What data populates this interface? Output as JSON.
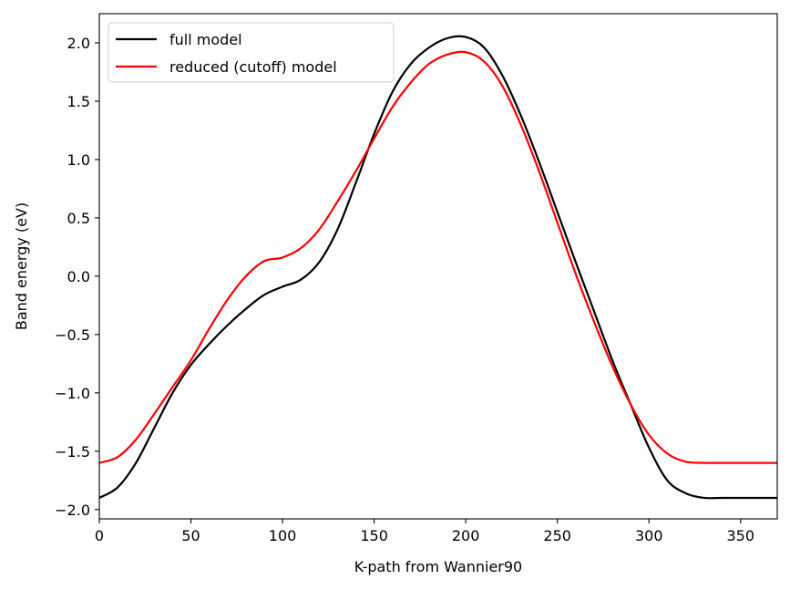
{
  "chart_data": {
    "type": "line",
    "xlabel": "K-path from Wannier90",
    "ylabel": "Band energy (eV)",
    "xlim": [
      0,
      370
    ],
    "ylim": [
      -2.08,
      2.25
    ],
    "xticks": [
      0,
      50,
      100,
      150,
      200,
      250,
      300,
      350
    ],
    "xtick_labels": [
      "0",
      "50",
      "100",
      "150",
      "200",
      "250",
      "300",
      "350"
    ],
    "yticks": [
      -2.0,
      -1.5,
      -1.0,
      -0.5,
      0.0,
      0.5,
      1.0,
      1.5,
      2.0
    ],
    "ytick_labels": [
      "−2.0",
      "−1.5",
      "−1.0",
      "−0.5",
      "0.0",
      "0.5",
      "1.0",
      "1.5",
      "2.0"
    ],
    "grid": false,
    "legend_position": "top-left",
    "series": [
      {
        "name": "full model",
        "color": "#000000",
        "x": [
          0,
          10,
          20,
          30,
          40,
          50,
          60,
          70,
          80,
          90,
          100,
          110,
          120,
          130,
          140,
          150,
          160,
          170,
          180,
          190,
          200,
          210,
          220,
          230,
          240,
          250,
          260,
          270,
          280,
          290,
          300,
          310,
          320,
          330,
          340,
          350,
          360,
          370
        ],
        "y": [
          -1.9,
          -1.81,
          -1.6,
          -1.3,
          -1.0,
          -0.76,
          -0.58,
          -0.42,
          -0.28,
          -0.16,
          -0.09,
          -0.03,
          0.12,
          0.4,
          0.8,
          1.22,
          1.58,
          1.82,
          1.96,
          2.04,
          2.05,
          1.96,
          1.72,
          1.38,
          0.98,
          0.55,
          0.12,
          -0.3,
          -0.72,
          -1.1,
          -1.47,
          -1.75,
          -1.86,
          -1.9,
          -1.9,
          -1.9,
          -1.9,
          -1.9
        ]
      },
      {
        "name": "reduced (cutoff) model",
        "color": "#ff0000",
        "x": [
          0,
          10,
          20,
          30,
          40,
          50,
          60,
          70,
          80,
          90,
          100,
          110,
          120,
          130,
          140,
          150,
          160,
          170,
          180,
          190,
          200,
          210,
          220,
          230,
          240,
          250,
          260,
          270,
          280,
          290,
          300,
          310,
          320,
          330,
          340,
          350,
          360,
          370
        ],
        "y": [
          -1.6,
          -1.55,
          -1.4,
          -1.18,
          -0.95,
          -0.72,
          -0.45,
          -0.2,
          0.0,
          0.13,
          0.16,
          0.24,
          0.4,
          0.64,
          0.9,
          1.18,
          1.45,
          1.66,
          1.82,
          1.9,
          1.92,
          1.84,
          1.63,
          1.3,
          0.9,
          0.46,
          0.02,
          -0.39,
          -0.77,
          -1.1,
          -1.36,
          -1.52,
          -1.59,
          -1.6,
          -1.6,
          -1.6,
          -1.6,
          -1.6
        ]
      }
    ]
  }
}
